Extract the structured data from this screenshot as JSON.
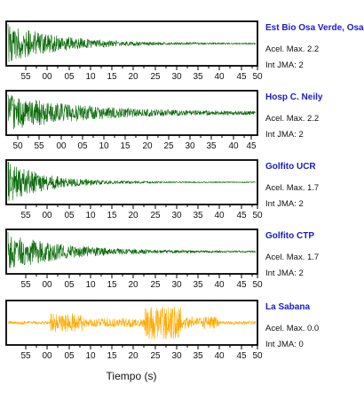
{
  "chart_data": {
    "type": "line",
    "xlabel": "Tiempo (s)",
    "panels": [
      {
        "station": "Est Bio Osa Verde, Osa",
        "pga_label": "Acel. Max. 2.2",
        "jma_label": "Int JMA: 2",
        "color": "#0a6a0a",
        "tick_labels": [
          "55",
          "00",
          "05",
          "10",
          "15",
          "20",
          "25",
          "30",
          "35",
          "40",
          "45",
          "50"
        ],
        "envelope": {
          "onset": 0.0,
          "peak": 0.95,
          "decay": 0.22,
          "floor": 0.02
        }
      },
      {
        "station": "Hosp C. Neily",
        "pga_label": "Acel. Max. 2.2",
        "jma_label": "Int JMA: 2",
        "color": "#0a6a0a",
        "tick_labels": [
          "50",
          "55",
          "00",
          "05",
          "10",
          "15",
          "20",
          "25",
          "30",
          "35",
          "40",
          "45"
        ],
        "envelope": {
          "onset": 0.0,
          "peak": 0.85,
          "decay": 0.3,
          "floor": 0.06
        }
      },
      {
        "station": "Golfito UCR",
        "pga_label": "Acel. Max. 1.7",
        "jma_label": "Int JMA: 2",
        "color": "#0a6a0a",
        "tick_labels": [
          "55",
          "00",
          "05",
          "10",
          "15",
          "20",
          "25",
          "30",
          "35",
          "40",
          "45",
          "50"
        ],
        "envelope": {
          "onset": 0.0,
          "peak": 1.0,
          "decay": 0.16,
          "floor": 0.02
        }
      },
      {
        "station": "Golfito CTP",
        "pga_label": "Acel. Max. 1.7",
        "jma_label": "Int JMA: 2",
        "color": "#0a6a0a",
        "tick_labels": [
          "55",
          "00",
          "05",
          "10",
          "15",
          "20",
          "25",
          "30",
          "35",
          "40",
          "45",
          "50"
        ],
        "envelope": {
          "onset": 0.0,
          "peak": 0.95,
          "decay": 0.22,
          "floor": 0.03
        }
      },
      {
        "station": "La Sabana",
        "pga_label": "Acel. Max. 0.0",
        "jma_label": "Int JMA: 0",
        "color": "#ffaa00",
        "tick_labels": [
          "55",
          "00",
          "05",
          "10",
          "15",
          "20",
          "25",
          "30",
          "35",
          "40",
          "45",
          "50"
        ],
        "envelope": {
          "onset": 0.0,
          "peak": 0.35,
          "decay": 5.0,
          "floor": 0.12
        }
      }
    ]
  }
}
